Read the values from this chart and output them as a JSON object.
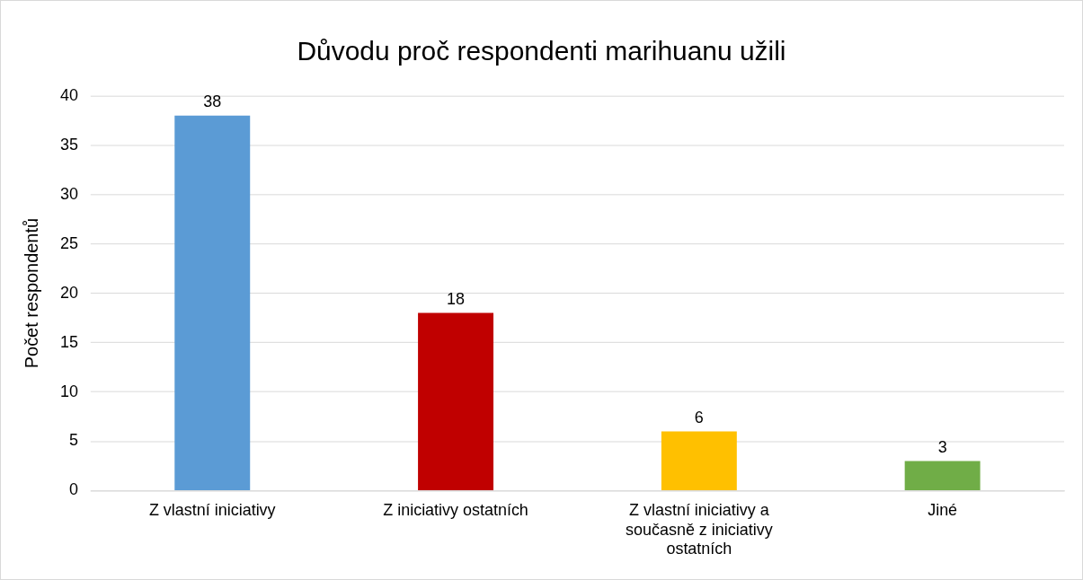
{
  "chart_data": {
    "type": "bar",
    "title": "Důvodu proč respondenti marihuanu užili",
    "ylabel": "Počet respondentů",
    "categories": [
      "Z vlastní iniciativy",
      "Z iniciativy ostatních",
      "Z vlastní iniciativy a současně z iniciativy ostatních",
      "Jiné"
    ],
    "values": [
      38,
      18,
      6,
      3
    ],
    "colors": [
      "#5b9bd5",
      "#c00000",
      "#ffc000",
      "#70ad47"
    ],
    "ylim": [
      0,
      40
    ],
    "yticks": [
      0,
      5,
      10,
      15,
      20,
      25,
      30,
      35,
      40
    ],
    "grid": "y",
    "legend": false,
    "data_labels": true
  }
}
